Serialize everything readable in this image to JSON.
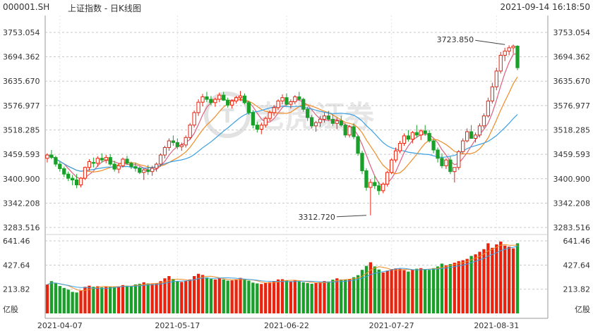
{
  "header": {
    "symbol": "000001.SH",
    "name": "上证指数 - 日K线图",
    "timestamp": "2021-09-14 16:18:50"
  },
  "watermark": "老虎证券",
  "colors": {
    "up": "#e8230e",
    "down": "#1aa02a",
    "ma5": "#e06080",
    "ma10": "#f08c28",
    "ma20": "#3aa0e0",
    "grid": "#c8c8c8",
    "text": "#333333"
  },
  "chart_data": {
    "type": "candlestick",
    "price_axis": {
      "ticks": [
        "3753.054",
        "3694.362",
        "3635.670",
        "3576.977",
        "3518.285",
        "3459.593",
        "3400.900",
        "3342.208",
        "3283.516"
      ],
      "range": [
        3283.516,
        3753.054
      ]
    },
    "volume_axis": {
      "ticks": [
        "641.46",
        "427.64",
        "213.82"
      ],
      "unit": "亿股",
      "range": [
        0,
        641.46
      ]
    },
    "x_labels": [
      {
        "index": 3,
        "label": "2021-04-07"
      },
      {
        "index": 31,
        "label": "2021-05-17"
      },
      {
        "index": 57,
        "label": "2021-06-22"
      },
      {
        "index": 82,
        "label": "2021-07-27"
      },
      {
        "index": 107,
        "label": "2021-08-31"
      }
    ],
    "annotations": [
      {
        "label": "3723.850",
        "index": 109,
        "value": 3723.85,
        "side": "left"
      },
      {
        "label": "3312.720",
        "index": 76,
        "value": 3312.72,
        "side": "left"
      }
    ],
    "ohlcv": [
      [
        3450,
        3462,
        3440,
        3458,
        255
      ],
      [
        3458,
        3470,
        3448,
        3452,
        285
      ],
      [
        3452,
        3456,
        3430,
        3436,
        265
      ],
      [
        3436,
        3442,
        3418,
        3425,
        242
      ],
      [
        3425,
        3430,
        3405,
        3412,
        225
      ],
      [
        3412,
        3418,
        3395,
        3402,
        210
      ],
      [
        3402,
        3410,
        3385,
        3398,
        190
      ],
      [
        3398,
        3412,
        3378,
        3386,
        185
      ],
      [
        3386,
        3405,
        3380,
        3402,
        200
      ],
      [
        3402,
        3430,
        3398,
        3428,
        235
      ],
      [
        3428,
        3448,
        3420,
        3442,
        245
      ],
      [
        3440,
        3452,
        3428,
        3438,
        235
      ],
      [
        3438,
        3455,
        3430,
        3450,
        240
      ],
      [
        3450,
        3462,
        3440,
        3446,
        230
      ],
      [
        3446,
        3458,
        3438,
        3452,
        235
      ],
      [
        3452,
        3460,
        3432,
        3436,
        238
      ],
      [
        3436,
        3444,
        3418,
        3424,
        236
      ],
      [
        3424,
        3438,
        3414,
        3432,
        240
      ],
      [
        3432,
        3452,
        3428,
        3448,
        250
      ],
      [
        3448,
        3456,
        3434,
        3438,
        245
      ],
      [
        3438,
        3442,
        3424,
        3430,
        240
      ],
      [
        3430,
        3440,
        3418,
        3426,
        256
      ],
      [
        3426,
        3430,
        3412,
        3416,
        262
      ],
      [
        3416,
        3426,
        3398,
        3422,
        275
      ],
      [
        3422,
        3434,
        3410,
        3418,
        265
      ],
      [
        3418,
        3432,
        3408,
        3426,
        260
      ],
      [
        3426,
        3440,
        3418,
        3436,
        265
      ],
      [
        3436,
        3462,
        3430,
        3458,
        285
      ],
      [
        3458,
        3480,
        3450,
        3476,
        310
      ],
      [
        3476,
        3498,
        3468,
        3492,
        330
      ],
      [
        3492,
        3505,
        3480,
        3488,
        305
      ],
      [
        3488,
        3498,
        3472,
        3478,
        285
      ],
      [
        3478,
        3488,
        3468,
        3482,
        278
      ],
      [
        3482,
        3505,
        3476,
        3500,
        290
      ],
      [
        3500,
        3535,
        3495,
        3530,
        300
      ],
      [
        3530,
        3565,
        3524,
        3560,
        330
      ],
      [
        3560,
        3592,
        3552,
        3585,
        350
      ],
      [
        3585,
        3605,
        3575,
        3598,
        340
      ],
      [
        3598,
        3610,
        3585,
        3592,
        318
      ],
      [
        3592,
        3600,
        3578,
        3584,
        305
      ],
      [
        3584,
        3596,
        3574,
        3592,
        300
      ],
      [
        3592,
        3608,
        3585,
        3602,
        310
      ],
      [
        3602,
        3610,
        3588,
        3590,
        300
      ],
      [
        3590,
        3596,
        3572,
        3578,
        290
      ],
      [
        3578,
        3592,
        3570,
        3588,
        292
      ],
      [
        3588,
        3600,
        3582,
        3596,
        302
      ],
      [
        3596,
        3612,
        3588,
        3600,
        314
      ],
      [
        3600,
        3606,
        3580,
        3584,
        300
      ],
      [
        3584,
        3588,
        3555,
        3560,
        290
      ],
      [
        3560,
        3566,
        3522,
        3530,
        272
      ],
      [
        3530,
        3538,
        3512,
        3520,
        265
      ],
      [
        3520,
        3536,
        3508,
        3530,
        260
      ],
      [
        3530,
        3550,
        3524,
        3546,
        268
      ],
      [
        3546,
        3565,
        3540,
        3560,
        276
      ],
      [
        3560,
        3578,
        3552,
        3572,
        285
      ],
      [
        3572,
        3592,
        3566,
        3588,
        300
      ],
      [
        3588,
        3604,
        3580,
        3596,
        302
      ],
      [
        3596,
        3606,
        3576,
        3580,
        290
      ],
      [
        3580,
        3592,
        3570,
        3586,
        285
      ],
      [
        3586,
        3602,
        3580,
        3598,
        290
      ],
      [
        3598,
        3610,
        3588,
        3592,
        280
      ],
      [
        3592,
        3596,
        3562,
        3568,
        275
      ],
      [
        3568,
        3574,
        3540,
        3548,
        268
      ],
      [
        3548,
        3554,
        3522,
        3528,
        262
      ],
      [
        3528,
        3540,
        3514,
        3536,
        268
      ],
      [
        3536,
        3552,
        3526,
        3544,
        275
      ],
      [
        3544,
        3560,
        3536,
        3552,
        286
      ],
      [
        3552,
        3564,
        3540,
        3544,
        282
      ],
      [
        3544,
        3556,
        3528,
        3534,
        298
      ],
      [
        3534,
        3548,
        3520,
        3540,
        310
      ],
      [
        3540,
        3552,
        3526,
        3530,
        300
      ],
      [
        3530,
        3534,
        3500,
        3506,
        300
      ],
      [
        3506,
        3530,
        3500,
        3526,
        305
      ],
      [
        3526,
        3534,
        3496,
        3502,
        320
      ],
      [
        3502,
        3506,
        3456,
        3462,
        338
      ],
      [
        3462,
        3468,
        3412,
        3420,
        385
      ],
      [
        3420,
        3426,
        3372,
        3380,
        420
      ],
      [
        3380,
        3400,
        3312.72,
        3392,
        452
      ],
      [
        3392,
        3408,
        3376,
        3384,
        415
      ],
      [
        3384,
        3394,
        3362,
        3372,
        388
      ],
      [
        3372,
        3392,
        3366,
        3388,
        362
      ],
      [
        3388,
        3420,
        3382,
        3416,
        378
      ],
      [
        3416,
        3450,
        3412,
        3446,
        392
      ],
      [
        3446,
        3476,
        3440,
        3468,
        398
      ],
      [
        3468,
        3492,
        3462,
        3486,
        394
      ],
      [
        3486,
        3510,
        3480,
        3504,
        382
      ],
      [
        3504,
        3518,
        3490,
        3496,
        370
      ],
      [
        3496,
        3516,
        3486,
        3512,
        388
      ],
      [
        3512,
        3530,
        3500,
        3506,
        395
      ],
      [
        3506,
        3520,
        3494,
        3516,
        400
      ],
      [
        3516,
        3530,
        3504,
        3510,
        392
      ],
      [
        3510,
        3518,
        3488,
        3492,
        385
      ],
      [
        3492,
        3496,
        3462,
        3470,
        400
      ],
      [
        3470,
        3476,
        3440,
        3450,
        415
      ],
      [
        3450,
        3462,
        3426,
        3432,
        440
      ],
      [
        3432,
        3450,
        3424,
        3446,
        425
      ],
      [
        3446,
        3454,
        3412,
        3418,
        436
      ],
      [
        3418,
        3424,
        3392,
        3428,
        448
      ],
      [
        3428,
        3470,
        3422,
        3466,
        462
      ],
      [
        3466,
        3498,
        3460,
        3492,
        470
      ],
      [
        3492,
        3522,
        3488,
        3514,
        482
      ],
      [
        3514,
        3530,
        3504,
        3498,
        508
      ],
      [
        3498,
        3512,
        3488,
        3506,
        522
      ],
      [
        3506,
        3534,
        3500,
        3528,
        545
      ],
      [
        3528,
        3558,
        3522,
        3552,
        568
      ],
      [
        3552,
        3596,
        3548,
        3588,
        620
      ],
      [
        3588,
        3632,
        3582,
        3622,
        580
      ],
      [
        3622,
        3668,
        3614,
        3660,
        610
      ],
      [
        3660,
        3706,
        3654,
        3698,
        635
      ],
      [
        3698,
        3716,
        3684,
        3708,
        600
      ],
      [
        3708,
        3722,
        3698,
        3716,
        590
      ],
      [
        3716,
        3723.85,
        3702,
        3720,
        575
      ],
      [
        3720,
        3722,
        3662,
        3668,
        620
      ]
    ]
  }
}
